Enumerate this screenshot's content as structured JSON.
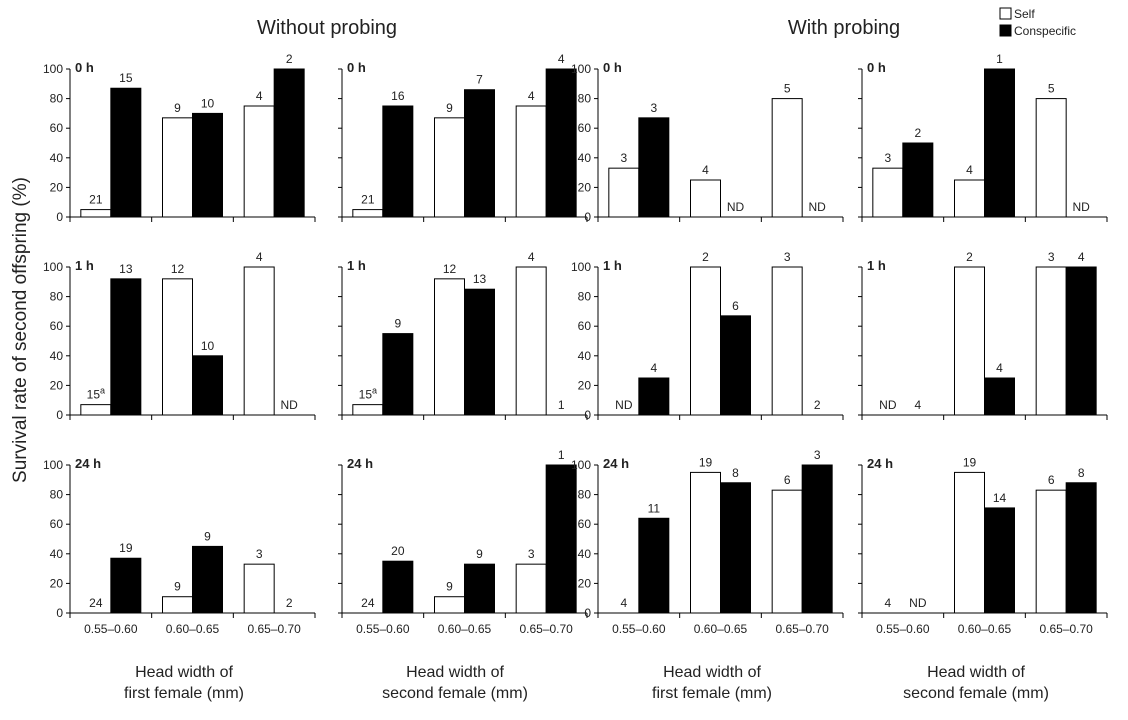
{
  "groups": [
    {
      "title": "Without probing"
    },
    {
      "title": "With probing"
    }
  ],
  "legend": {
    "self_label": "Self",
    "conspecific_label": "Conspecific"
  },
  "y_axis_label": "Survival rate of second offspring (%)",
  "x_labels": [
    {
      "line1": "Head width of",
      "line2": "first female (mm)"
    },
    {
      "line1": "Head width of",
      "line2": "second female (mm)"
    },
    {
      "line1": "Head width of",
      "line2": "first female (mm)"
    },
    {
      "line1": "Head width of",
      "line2": "second female (mm)"
    }
  ],
  "colors": {
    "self": "#ffffff",
    "conspecific": "#000000",
    "stroke": "#000000"
  },
  "chart_data": {
    "type": "bar",
    "categories": [
      "0.55–0.60",
      "0.60–0.65",
      "0.65–0.70"
    ],
    "series_names": [
      "Self",
      "Conspecific"
    ],
    "ylim": [
      0,
      100
    ],
    "yticks": [
      0,
      20,
      40,
      60,
      80,
      100
    ],
    "ylabel": "Survival rate of second offspring (%)",
    "row_labels": [
      "0 h",
      "1 h",
      "24 h"
    ],
    "panels": [
      {
        "row": 0,
        "col": 0,
        "time": "0 h",
        "self": [
          5,
          67,
          75
        ],
        "conspecific": [
          87,
          70,
          100
        ],
        "self_n": [
          "21",
          "9",
          "4"
        ],
        "conspecific_n": [
          "15",
          "10",
          "2"
        ]
      },
      {
        "row": 0,
        "col": 1,
        "time": "0 h",
        "self": [
          5,
          67,
          75
        ],
        "conspecific": [
          75,
          86,
          100
        ],
        "self_n": [
          "21",
          "9",
          "4"
        ],
        "conspecific_n": [
          "16",
          "7",
          "4"
        ]
      },
      {
        "row": 0,
        "col": 2,
        "time": "0 h",
        "self": [
          33,
          25,
          80
        ],
        "conspecific": [
          67,
          null,
          null
        ],
        "self_n": [
          "3",
          "4",
          "5"
        ],
        "conspecific_n": [
          "3",
          "ND",
          "ND"
        ]
      },
      {
        "row": 0,
        "col": 3,
        "time": "0 h",
        "self": [
          33,
          25,
          80
        ],
        "conspecific": [
          50,
          100,
          null
        ],
        "self_n": [
          "3",
          "4",
          "5"
        ],
        "conspecific_n": [
          "2",
          "1",
          "ND"
        ]
      },
      {
        "row": 1,
        "col": 0,
        "time": "1 h",
        "self": [
          7,
          92,
          100
        ],
        "conspecific": [
          92,
          40,
          null
        ],
        "self_n": [
          "15",
          "12",
          "4"
        ],
        "self_n_sup": [
          "a",
          "",
          ""
        ],
        "conspecific_n": [
          "13",
          "10",
          "ND"
        ]
      },
      {
        "row": 1,
        "col": 1,
        "time": "1 h",
        "self": [
          7,
          92,
          100
        ],
        "conspecific": [
          55,
          85,
          0
        ],
        "self_n": [
          "15",
          "12",
          "4"
        ],
        "self_n_sup": [
          "a",
          "",
          ""
        ],
        "conspecific_n": [
          "9",
          "13",
          "1"
        ]
      },
      {
        "row": 1,
        "col": 2,
        "time": "1 h",
        "self": [
          null,
          100,
          100
        ],
        "conspecific": [
          25,
          67,
          0
        ],
        "self_n": [
          "ND",
          "2",
          "3"
        ],
        "conspecific_n": [
          "4",
          "6",
          "2"
        ]
      },
      {
        "row": 1,
        "col": 3,
        "time": "1 h",
        "self": [
          null,
          100,
          100
        ],
        "conspecific": [
          0,
          25,
          100
        ],
        "self_n": [
          "ND",
          "2",
          "3"
        ],
        "conspecific_n": [
          "4",
          "4",
          "4"
        ]
      },
      {
        "row": 2,
        "col": 0,
        "time": "24 h",
        "self": [
          0,
          11,
          33
        ],
        "conspecific": [
          37,
          45,
          0
        ],
        "self_n": [
          "24",
          "9",
          "3"
        ],
        "conspecific_n": [
          "19",
          "9",
          "2"
        ]
      },
      {
        "row": 2,
        "col": 1,
        "time": "24 h",
        "self": [
          0,
          11,
          33
        ],
        "conspecific": [
          35,
          33,
          100
        ],
        "self_n": [
          "24",
          "9",
          "3"
        ],
        "conspecific_n": [
          "20",
          "9",
          "1"
        ]
      },
      {
        "row": 2,
        "col": 2,
        "time": "24 h",
        "self": [
          0,
          95,
          83
        ],
        "conspecific": [
          64,
          88,
          100
        ],
        "self_n": [
          "4",
          "19",
          "6"
        ],
        "conspecific_n": [
          "11",
          "8",
          "3"
        ]
      },
      {
        "row": 2,
        "col": 3,
        "time": "24 h",
        "self": [
          0,
          95,
          83
        ],
        "conspecific": [
          null,
          71,
          88
        ],
        "self_n": [
          "4",
          "19",
          "6"
        ],
        "conspecific_n": [
          "ND",
          "14",
          "8"
        ]
      }
    ]
  }
}
